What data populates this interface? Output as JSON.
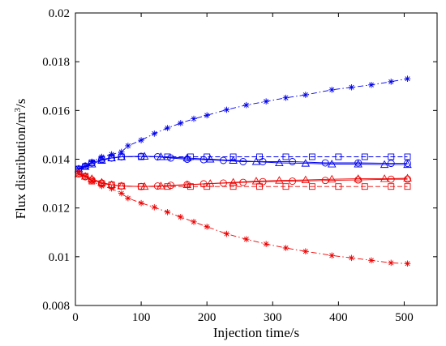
{
  "chart_data": {
    "type": "line",
    "xlabel": "Injection time/s",
    "ylabel_main": "Flux distribution/m",
    "ylabel_sup": "3",
    "ylabel_tail": "/s",
    "xlim": [
      0,
      550
    ],
    "ylim": [
      0.008,
      0.02
    ],
    "xticks": [
      0,
      100,
      200,
      300,
      400,
      500
    ],
    "yticks": [
      0.008,
      0.01,
      0.012,
      0.014,
      0.016,
      0.018,
      0.02
    ],
    "xtick_labels": [
      "0",
      "100",
      "200",
      "300",
      "400",
      "500"
    ],
    "ytick_labels": [
      "0.008",
      "0.01",
      "0.012",
      "0.014",
      "0.016",
      "0.018",
      "0.02"
    ],
    "grid": false,
    "colors": {
      "blue": "#0000ee",
      "red": "#ee0000"
    },
    "series": [
      {
        "color": "blue",
        "marker": "asterisk",
        "line": "dashdot",
        "x": [
          5,
          15,
          25,
          40,
          55,
          70,
          80,
          100,
          120,
          140,
          160,
          180,
          200,
          230,
          260,
          290,
          320,
          350,
          390,
          420,
          450,
          480,
          505
        ],
        "y": [
          0.0136,
          0.0137,
          0.0139,
          0.0141,
          0.0142,
          0.0143,
          0.01455,
          0.01478,
          0.01505,
          0.01528,
          0.01548,
          0.01566,
          0.0158,
          0.01603,
          0.01622,
          0.01637,
          0.01652,
          0.01664,
          0.01685,
          0.01695,
          0.01705,
          0.01718,
          0.0173
        ]
      },
      {
        "color": "blue",
        "marker": "square",
        "line": "dash",
        "x": [
          5,
          15,
          25,
          40,
          55,
          70,
          100,
          140,
          175,
          200,
          240,
          280,
          320,
          360,
          400,
          440,
          480,
          505
        ],
        "y": [
          0.0136,
          0.0137,
          0.01385,
          0.014,
          0.01405,
          0.0141,
          0.0141,
          0.0141,
          0.0141,
          0.0141,
          0.0141,
          0.0141,
          0.0141,
          0.0141,
          0.0141,
          0.0141,
          0.0141,
          0.0141
        ]
      },
      {
        "color": "blue",
        "marker": "circle",
        "line": "solid",
        "x": [
          5,
          15,
          25,
          40,
          55,
          70,
          100,
          125,
          145,
          170,
          195,
          225,
          255,
          285,
          330,
          380,
          430,
          480,
          505
        ],
        "y": [
          0.0136,
          0.01372,
          0.01385,
          0.01398,
          0.01405,
          0.0141,
          0.01412,
          0.0141,
          0.01405,
          0.014,
          0.01398,
          0.01395,
          0.0139,
          0.0139,
          0.0139,
          0.01385,
          0.01385,
          0.01383,
          0.01383
        ]
      },
      {
        "color": "blue",
        "marker": "triangle",
        "line": "solid",
        "x": [
          5,
          15,
          25,
          40,
          55,
          70,
          105,
          130,
          170,
          205,
          240,
          275,
          310,
          350,
          390,
          430,
          470,
          505
        ],
        "y": [
          0.0136,
          0.0137,
          0.0138,
          0.01395,
          0.01405,
          0.0141,
          0.01412,
          0.0141,
          0.01405,
          0.014,
          0.01395,
          0.0139,
          0.01385,
          0.01383,
          0.0138,
          0.0138,
          0.01378,
          0.01378
        ]
      },
      {
        "color": "red",
        "marker": "asterisk",
        "line": "dashdot",
        "x": [
          5,
          15,
          25,
          40,
          55,
          70,
          80,
          100,
          120,
          140,
          160,
          180,
          200,
          230,
          260,
          290,
          320,
          350,
          390,
          420,
          450,
          480,
          505
        ],
        "y": [
          0.0134,
          0.0133,
          0.0131,
          0.0129,
          0.0128,
          0.0126,
          0.0124,
          0.0122,
          0.01203,
          0.01183,
          0.01163,
          0.01143,
          0.01123,
          0.01094,
          0.01072,
          0.01052,
          0.01036,
          0.01022,
          0.01005,
          0.00995,
          0.00985,
          0.00975,
          0.00972
        ]
      },
      {
        "color": "red",
        "marker": "square",
        "line": "dash",
        "x": [
          5,
          15,
          25,
          40,
          55,
          70,
          100,
          140,
          175,
          200,
          240,
          280,
          320,
          360,
          400,
          440,
          480,
          505
        ],
        "y": [
          0.0134,
          0.0133,
          0.0131,
          0.013,
          0.01295,
          0.0129,
          0.01288,
          0.01288,
          0.01288,
          0.01288,
          0.01288,
          0.01288,
          0.01288,
          0.01288,
          0.01288,
          0.01288,
          0.01288,
          0.01288
        ]
      },
      {
        "color": "red",
        "marker": "circle",
        "line": "solid",
        "x": [
          5,
          15,
          25,
          40,
          55,
          70,
          100,
          125,
          145,
          170,
          195,
          225,
          255,
          285,
          330,
          380,
          430,
          480,
          505
        ],
        "y": [
          0.0134,
          0.01328,
          0.01315,
          0.01302,
          0.01295,
          0.0129,
          0.01288,
          0.0129,
          0.01293,
          0.01296,
          0.01299,
          0.01302,
          0.01305,
          0.01308,
          0.0131,
          0.01313,
          0.01315,
          0.01318,
          0.01318
        ]
      },
      {
        "color": "red",
        "marker": "triangle",
        "line": "solid",
        "x": [
          5,
          15,
          25,
          40,
          55,
          70,
          105,
          130,
          170,
          205,
          240,
          275,
          310,
          350,
          390,
          430,
          470,
          505
        ],
        "y": [
          0.0134,
          0.0133,
          0.0132,
          0.01305,
          0.01295,
          0.0129,
          0.01288,
          0.0129,
          0.01295,
          0.013,
          0.01305,
          0.0131,
          0.01313,
          0.01315,
          0.01318,
          0.0132,
          0.0132,
          0.01322
        ]
      }
    ]
  }
}
